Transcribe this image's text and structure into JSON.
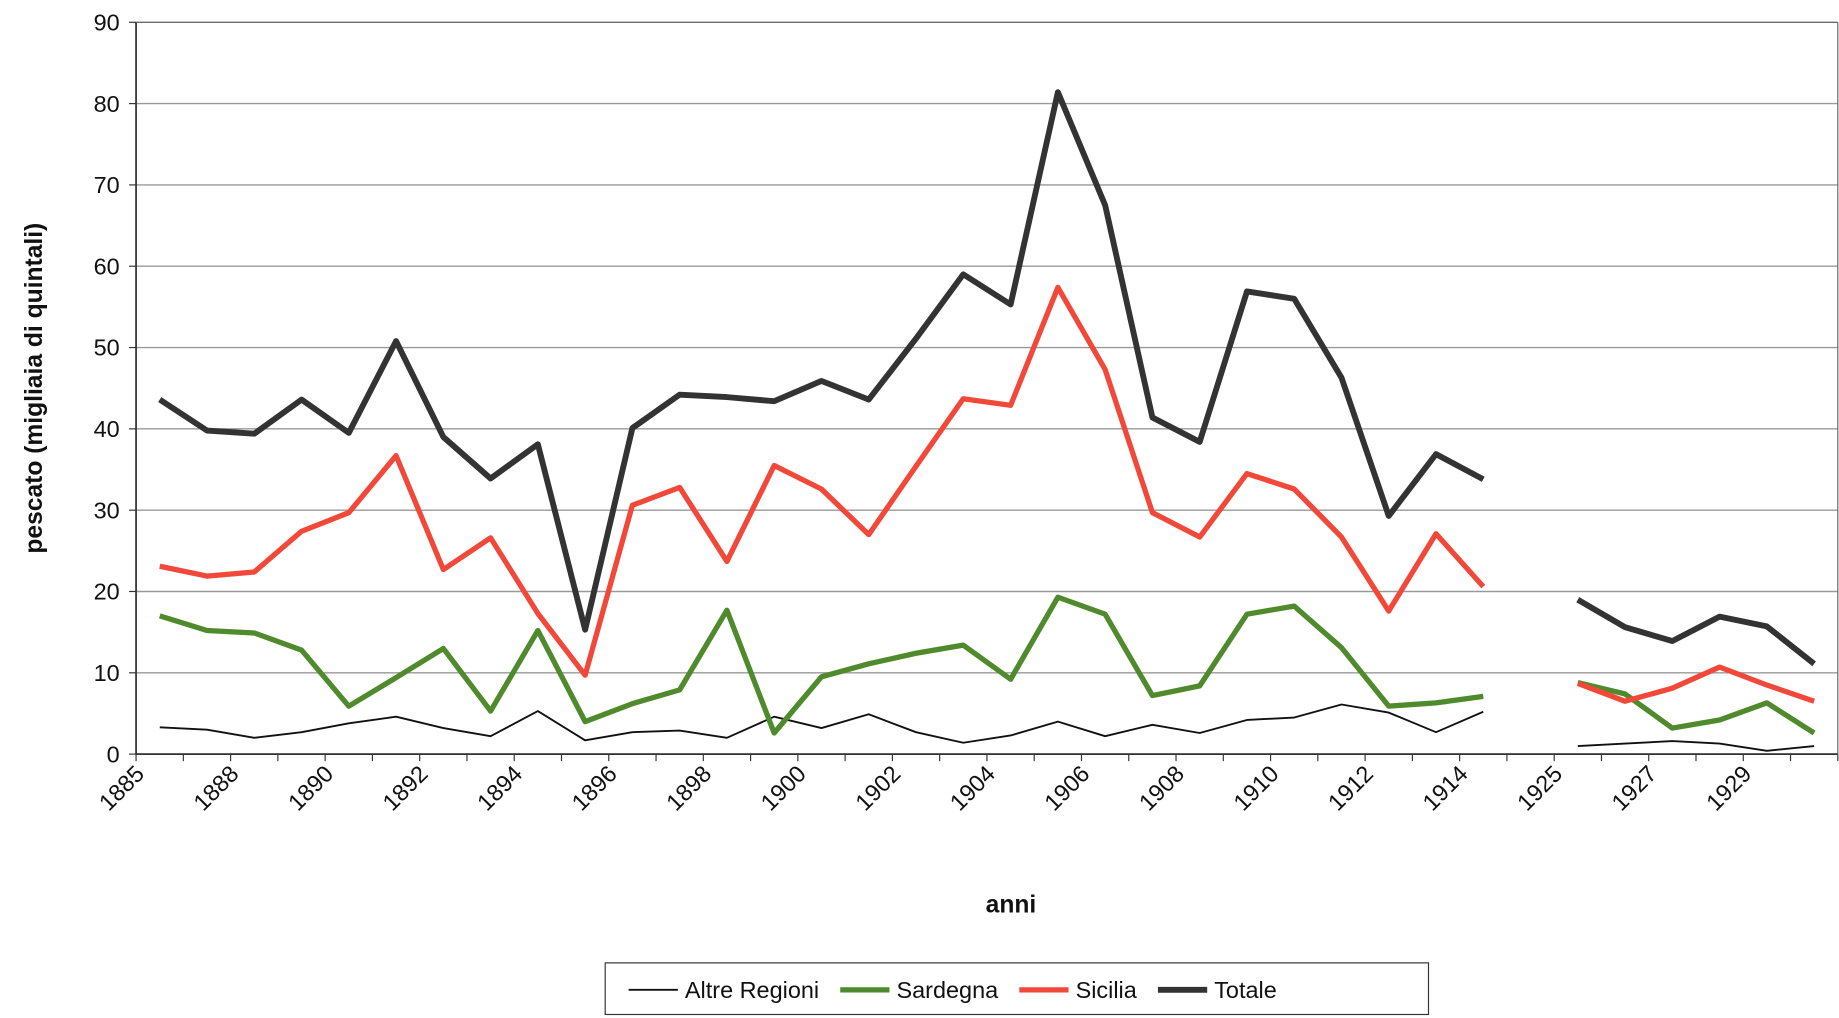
{
  "chart_data": {
    "type": "line",
    "x_label": "anni",
    "y_label": "pescato (migliaia di quintali)",
    "categories": [
      "1885",
      null,
      "1888",
      null,
      "1890",
      null,
      "1892",
      null,
      "1894",
      null,
      "1896",
      null,
      "1898",
      null,
      "1900",
      null,
      "1902",
      null,
      "1904",
      null,
      "1906",
      null,
      "1908",
      null,
      "1910",
      null,
      "1912",
      null,
      "1914",
      null,
      "1925",
      null,
      "1927",
      null,
      "1929",
      null
    ],
    "series": [
      {
        "name": "Altre Regioni",
        "color": "#111111",
        "values": [
          3.3,
          3.0,
          2.0,
          2.7,
          3.8,
          4.6,
          3.2,
          2.2,
          5.3,
          1.7,
          2.7,
          2.9,
          2.0,
          4.6,
          3.2,
          4.9,
          2.7,
          1.4,
          2.3,
          4.0,
          2.2,
          3.6,
          2.6,
          4.2,
          4.5,
          6.1,
          5.1,
          2.7,
          5.2,
          null,
          1.0,
          1.3,
          1.6,
          1.3,
          0.4,
          1.0
        ]
      },
      {
        "name": "Sardegna",
        "color": "#4f8a2c",
        "values": [
          17.0,
          15.2,
          14.9,
          12.8,
          5.9,
          9.4,
          13.0,
          5.3,
          15.2,
          4.0,
          6.2,
          7.9,
          17.7,
          2.6,
          9.5,
          11.1,
          12.4,
          13.4,
          9.2,
          19.3,
          17.2,
          7.2,
          8.4,
          17.2,
          18.2,
          13.1,
          5.9,
          6.3,
          7.1,
          null,
          8.8,
          7.4,
          3.2,
          4.2,
          6.3,
          2.6
        ]
      },
      {
        "name": "Sicilia",
        "color": "#f2483a",
        "values": [
          23.1,
          21.9,
          22.4,
          27.4,
          29.7,
          36.7,
          22.7,
          26.6,
          17.3,
          9.7,
          30.6,
          32.8,
          23.7,
          35.5,
          32.6,
          27.0,
          35.4,
          43.7,
          42.9,
          57.4,
          47.3,
          29.7,
          26.7,
          34.5,
          32.6,
          26.7,
          17.6,
          27.1,
          20.6,
          null,
          8.7,
          6.5,
          8.1,
          10.7,
          8.5,
          6.5
        ]
      },
      {
        "name": "Totale",
        "color": "#333333",
        "values": [
          43.6,
          39.8,
          39.4,
          43.6,
          39.5,
          50.8,
          39.0,
          33.9,
          38.1,
          15.3,
          40.1,
          44.2,
          43.9,
          43.4,
          45.9,
          43.6,
          51.1,
          59.0,
          55.3,
          81.4,
          67.5,
          41.4,
          38.4,
          56.9,
          56.0,
          46.3,
          29.3,
          36.9,
          33.8,
          null,
          19.0,
          15.6,
          13.9,
          16.9,
          15.7,
          11.1
        ]
      }
    ],
    "ylim": [
      0,
      90
    ],
    "yticks": [
      0,
      10,
      20,
      30,
      40,
      50,
      60,
      70,
      80,
      90
    ],
    "grid": true
  }
}
